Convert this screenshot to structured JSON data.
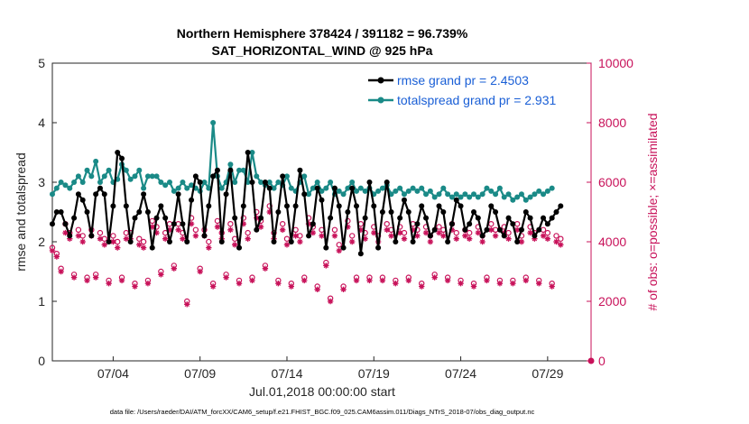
{
  "chart_data": {
    "type": "line",
    "title": "Northern Hemisphere 378424 / 391182 = 96.739%",
    "subtitle": "SAT_HORIZONTAL_WIND @ 925 hPa",
    "xlabel": "Jul.01,2018 00:00:00 start",
    "ylabel": "rmse and totalspread",
    "ylabel_right": "# of obs: o=possible; ×=assimilated",
    "footnote": "data file: /Users/raeder/DAI/ATM_forcXX/CAM6_setup/f.e21.FHIST_BGC.f09_025.CAM6assim.011/Diags_NTrS_2018-07/obs_diag_output.nc",
    "xlim": [
      0.5,
      31.5
    ],
    "ylim": [
      0,
      5
    ],
    "ylim_right": [
      0,
      10000
    ],
    "x_ticks": [
      4,
      9,
      14,
      19,
      24,
      29
    ],
    "x_tick_labels": [
      "07/04",
      "07/09",
      "07/14",
      "07/19",
      "07/24",
      "07/29"
    ],
    "y_ticks": [
      0,
      1,
      2,
      3,
      4,
      5
    ],
    "y_ticks_right": [
      0,
      2000,
      4000,
      6000,
      8000,
      10000
    ],
    "legend_position": "top-right",
    "legend": [
      "rmse grand pr = 2.4503",
      "totalspread grand pr = 2.931"
    ],
    "series": [
      {
        "name": "rmse grand pr = 2.4503",
        "axis": "left",
        "color": "#000000",
        "marker": "circle",
        "x_start": 0.5,
        "x_step": 0.25,
        "values": [
          2.3,
          2.5,
          2.5,
          2.3,
          2.1,
          2.4,
          2.8,
          2.7,
          2.5,
          2.1,
          2.8,
          2.9,
          2.8,
          2.0,
          2.6,
          3.5,
          3.4,
          2.6,
          2.0,
          2.4,
          2.5,
          2.8,
          2.5,
          1.9,
          2.4,
          2.6,
          2.4,
          2.0,
          2.3,
          2.8,
          2.3,
          2.0,
          2.7,
          3.1,
          3.0,
          2.1,
          2.6,
          3.1,
          3.2,
          2.0,
          2.8,
          3.2,
          2.4,
          1.9,
          2.6,
          3.5,
          3.0,
          2.2,
          2.4,
          3.0,
          2.9,
          2.0,
          2.5,
          3.1,
          2.6,
          2.0,
          2.6,
          3.2,
          2.8,
          2.1,
          2.3,
          2.9,
          2.7,
          1.9,
          2.4,
          2.9,
          2.6,
          1.9,
          2.5,
          2.9,
          2.6,
          1.8,
          2.4,
          3.0,
          2.6,
          1.9,
          2.5,
          3.0,
          2.5,
          2.0,
          2.4,
          2.7,
          2.5,
          2.0,
          2.3,
          2.6,
          2.4,
          2.1,
          2.2,
          2.6,
          2.5,
          2.0,
          2.3,
          2.7,
          2.6,
          2.2,
          2.3,
          2.5,
          2.4,
          2.1,
          2.2,
          2.6,
          2.5,
          2.2,
          2.1,
          2.4,
          2.3,
          2.0,
          2.2,
          2.5,
          2.4,
          2.1,
          2.2,
          2.4,
          2.3,
          2.4,
          2.5,
          2.6
        ]
      },
      {
        "name": "totalspread grand pr = 2.931",
        "axis": "left",
        "color": "#1a8a87",
        "marker": "circle",
        "x_start": 0.5,
        "x_step": 0.25,
        "values": [
          2.8,
          2.9,
          3.0,
          2.95,
          2.9,
          3.0,
          3.1,
          3.0,
          3.2,
          3.1,
          3.35,
          3.0,
          3.1,
          3.2,
          3.0,
          3.05,
          3.3,
          3.2,
          3.05,
          3.1,
          3.2,
          2.9,
          3.1,
          3.1,
          3.1,
          3.0,
          2.95,
          3.0,
          2.85,
          2.9,
          3.0,
          2.9,
          2.95,
          2.9,
          2.85,
          3.0,
          2.9,
          4.0,
          3.1,
          2.9,
          3.0,
          3.3,
          3.0,
          3.2,
          3.2,
          3.0,
          3.5,
          3.1,
          3.0,
          2.95,
          3.0,
          2.9,
          3.0,
          2.95,
          3.1,
          2.9,
          2.85,
          3.0,
          3.1,
          2.8,
          2.9,
          3.0,
          2.85,
          2.9,
          3.0,
          2.8,
          2.85,
          2.8,
          2.9,
          3.0,
          2.85,
          2.9,
          2.85,
          2.9,
          2.8,
          2.85,
          2.9,
          2.95,
          2.8,
          2.85,
          2.9,
          2.8,
          2.85,
          2.9,
          2.85,
          2.9,
          2.8,
          2.85,
          2.75,
          2.8,
          2.9,
          2.8,
          2.75,
          2.8,
          2.75,
          2.8,
          2.75,
          2.8,
          2.75,
          2.8,
          2.9,
          2.85,
          2.8,
          2.9,
          2.75,
          2.8,
          2.7,
          2.75,
          2.8,
          2.7,
          2.75,
          2.8,
          2.85,
          2.8,
          2.85,
          2.9
        ]
      },
      {
        "name": "# obs possible",
        "axis": "right",
        "color": "#c8125a",
        "marker": "o",
        "x_start": 0.5,
        "x_step": 0.25,
        "values": [
          3800,
          3600,
          3100,
          4600,
          4300,
          2900,
          4400,
          4200,
          2800,
          4400,
          2900,
          4300,
          4100,
          2700,
          4200,
          4000,
          2800,
          4300,
          4300,
          2600,
          4100,
          4000,
          2700,
          4700,
          4500,
          3000,
          4300,
          4600,
          3200,
          4600,
          4300,
          2000,
          4800,
          4400,
          3100,
          4400,
          4000,
          2600,
          4700,
          4300,
          2900,
          4600,
          4100,
          2700,
          4800,
          4300,
          2800,
          5000,
          4700,
          3200,
          5200,
          4300,
          2700,
          4600,
          4100,
          2600,
          4400,
          4200,
          2800,
          4800,
          4500,
          2500,
          4400,
          3300,
          2100,
          4400,
          3900,
          2500,
          4700,
          4200,
          2800,
          4600,
          4300,
          2800,
          4500,
          4200,
          2800,
          4600,
          4400,
          2700,
          4500,
          4300,
          2800,
          4600,
          4400,
          2600,
          4500,
          4200,
          2900,
          4500,
          4400,
          2800,
          4600,
          4300,
          2700,
          4400,
          4300,
          2600,
          4500,
          4200,
          2800,
          4600,
          4400,
          2700,
          4500,
          4300,
          2700,
          4600,
          4200,
          2800,
          4500,
          4300,
          2700,
          4400,
          4300,
          2600,
          4200,
          4100
        ]
      },
      {
        "name": "# obs assimilated",
        "axis": "right",
        "color": "#c8125a",
        "marker": "*",
        "x_start": 0.5,
        "x_step": 0.25,
        "values": [
          3700,
          3500,
          3000,
          4300,
          4100,
          2800,
          4200,
          4000,
          2700,
          4200,
          2800,
          4100,
          3900,
          2600,
          4000,
          3800,
          2700,
          4100,
          4100,
          2500,
          3900,
          3800,
          2600,
          4500,
          4300,
          2900,
          4100,
          4400,
          3100,
          4400,
          4100,
          1900,
          4600,
          4200,
          3000,
          4200,
          3800,
          2500,
          4500,
          4100,
          2800,
          4400,
          3900,
          2600,
          4600,
          4100,
          2700,
          4800,
          4500,
          3100,
          5000,
          4100,
          2600,
          4400,
          3900,
          2500,
          4200,
          4000,
          2700,
          4600,
          4300,
          2400,
          4200,
          3200,
          2000,
          4200,
          3700,
          2400,
          4500,
          4000,
          2700,
          4400,
          4100,
          2700,
          4300,
          4000,
          2700,
          4400,
          4200,
          2600,
          4300,
          4100,
          2700,
          4400,
          4200,
          2500,
          4300,
          4000,
          2800,
          4300,
          4200,
          2700,
          4400,
          4100,
          2600,
          4200,
          4100,
          2500,
          4300,
          4000,
          2700,
          4400,
          4200,
          2600,
          4300,
          4100,
          2600,
          4400,
          4000,
          2700,
          4300,
          4100,
          2600,
          4200,
          4100,
          2500,
          4000,
          3900
        ]
      }
    ],
    "endpoint_marker": {
      "x": 31.5,
      "y_right": 0
    }
  }
}
